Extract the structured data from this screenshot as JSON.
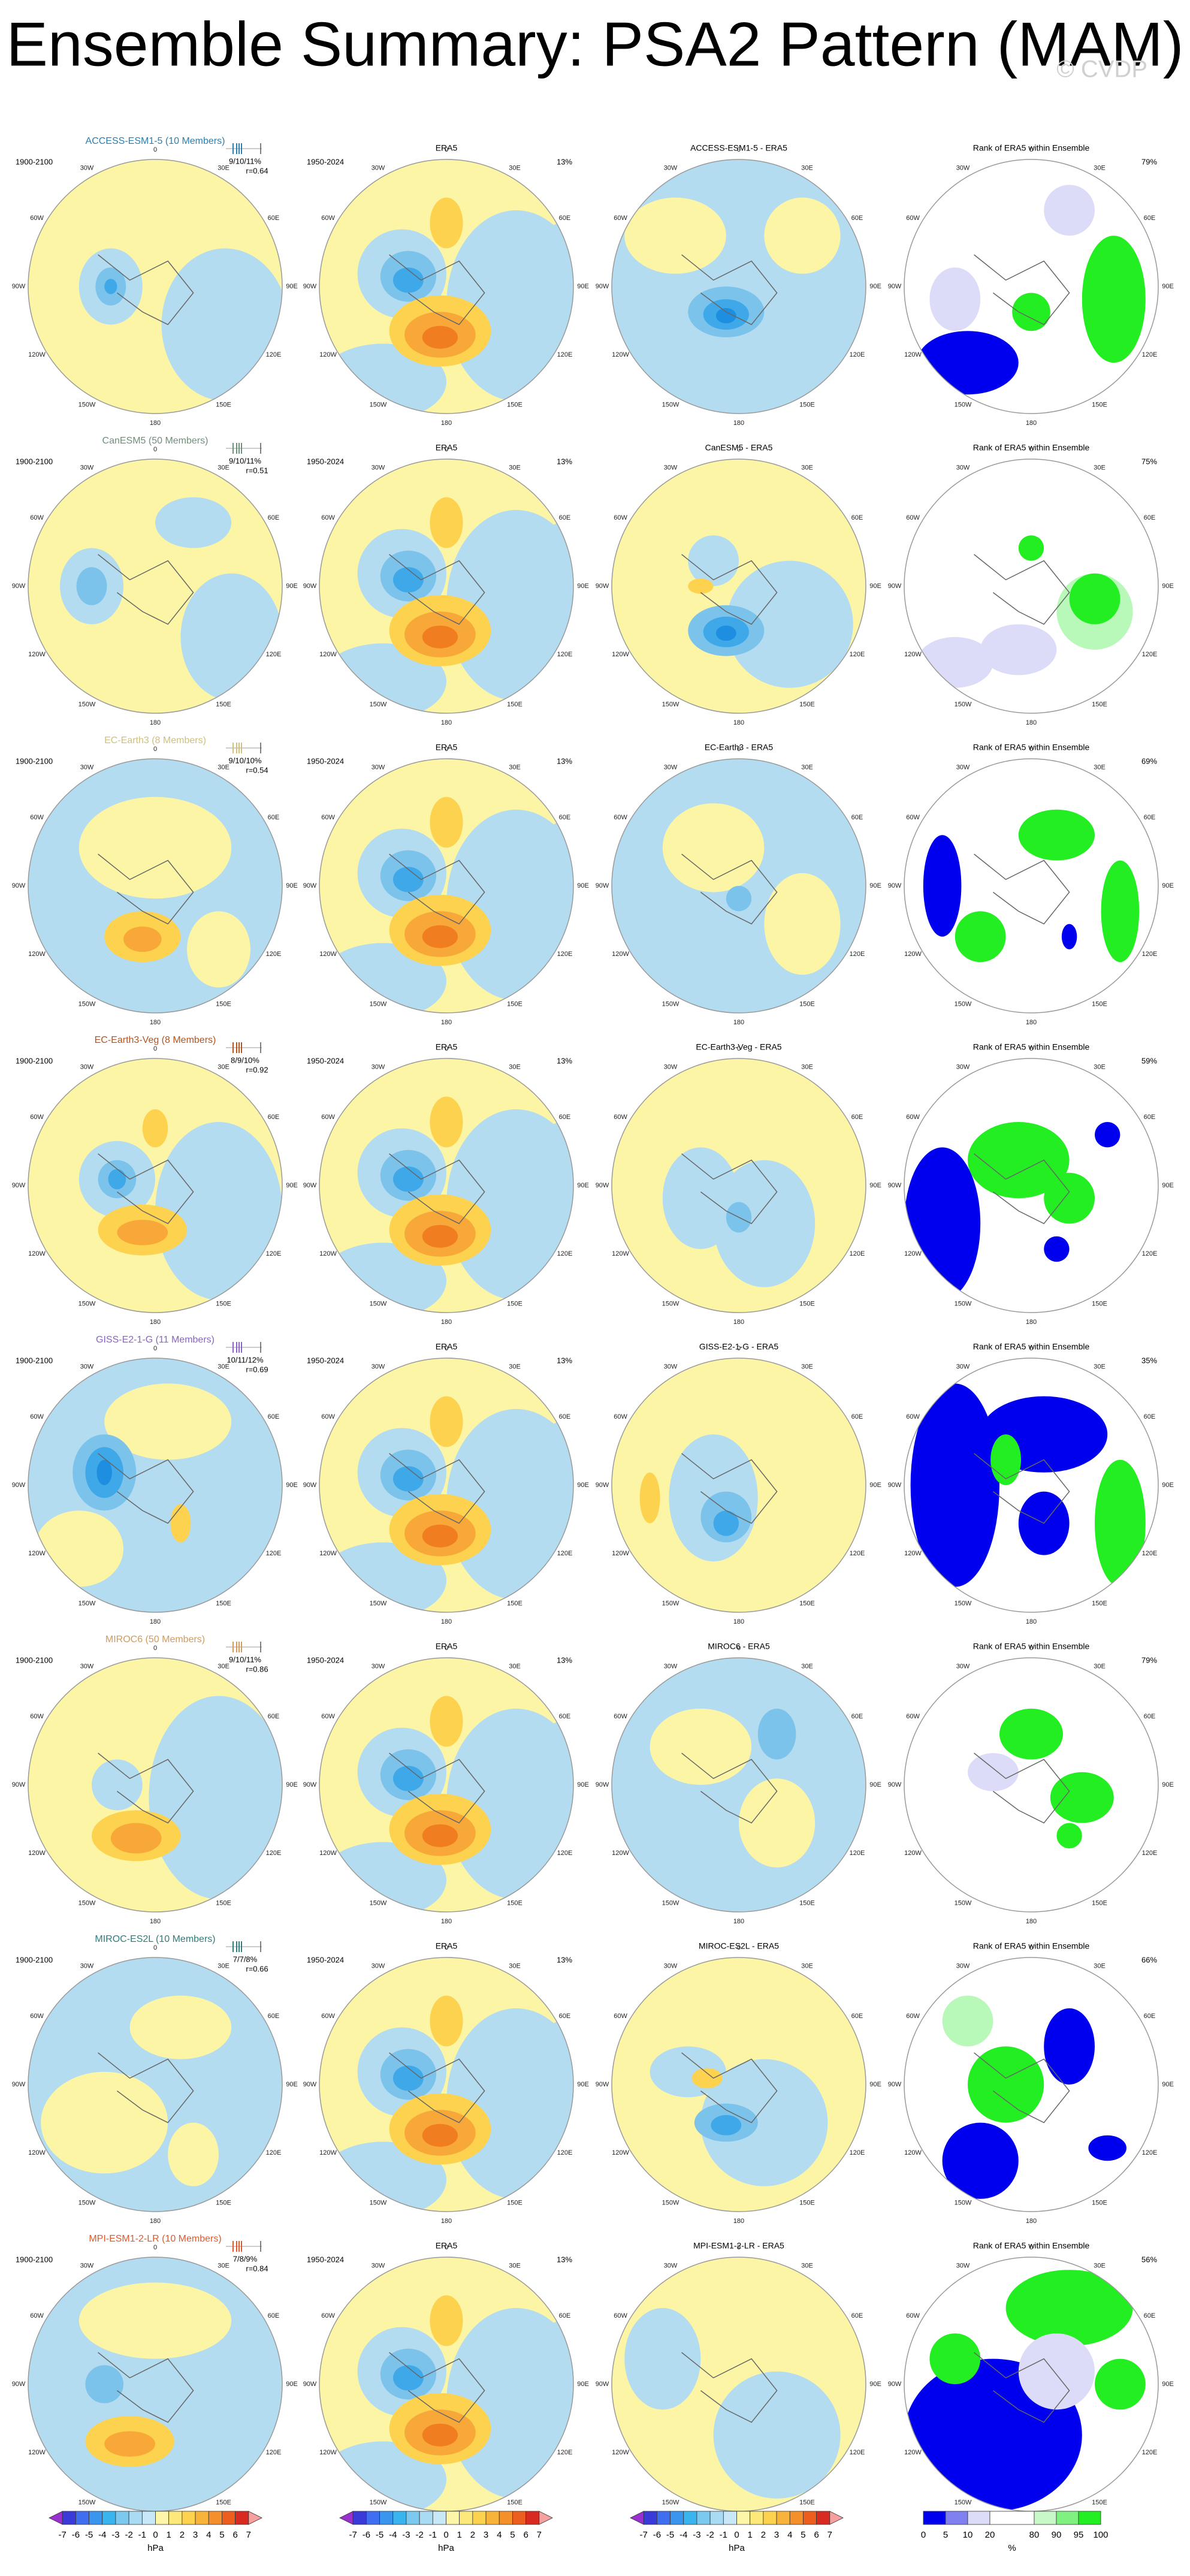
{
  "title": "Ensemble Summary: PSA2 Pattern (MAM)",
  "watermark": "© CVDP",
  "panel_titles": {
    "era5": "ERA5",
    "rank": "Rank of ERA5 within Ensemble"
  },
  "periods": {
    "model": "1900-2100",
    "era5": "1950-2024"
  },
  "lon_labels": [
    "0",
    "30E",
    "60E",
    "90E",
    "120E",
    "150E",
    "180",
    "150W",
    "120W",
    "90W",
    "60W",
    "30W"
  ],
  "rows": [
    {
      "model": "ACCESS-ESM1-5 (10 Members)",
      "color": "#2a7fb0",
      "pct": "9/10/11%",
      "r": "r=0.64",
      "era5_pct": "13%",
      "diff_title": "ACCESS-ESM1-5 - ERA5",
      "rank_pct": "79%"
    },
    {
      "model": "CanESM5 (50 Members)",
      "color": "#6f8f7a",
      "pct": "9/10/11%",
      "r": "r=0.51",
      "era5_pct": "13%",
      "diff_title": "CanESM5 - ERA5",
      "rank_pct": "75%"
    },
    {
      "model": "EC-Earth3 (8 Members)",
      "color": "#cfc07a",
      "pct": "9/10/10%",
      "r": "r=0.54",
      "era5_pct": "13%",
      "diff_title": "EC-Earth3 - ERA5",
      "rank_pct": "69%"
    },
    {
      "model": "EC-Earth3-Veg (8 Members)",
      "color": "#b4531e",
      "pct": "8/9/10%",
      "r": "r=0.92",
      "era5_pct": "13%",
      "diff_title": "EC-Earth3-Veg - ERA5",
      "rank_pct": "59%"
    },
    {
      "model": "GISS-E2-1-G (11 Members)",
      "color": "#8a63c8",
      "pct": "10/11/12%",
      "r": "r=0.69",
      "era5_pct": "13%",
      "diff_title": "GISS-E2-1-G - ERA5",
      "rank_pct": "35%"
    },
    {
      "model": "MIROC6 (50 Members)",
      "color": "#d49a5a",
      "pct": "9/10/11%",
      "r": "r=0.86",
      "era5_pct": "13%",
      "diff_title": "MIROC6 - ERA5",
      "rank_pct": "79%"
    },
    {
      "model": "MIROC-ES2L (10 Members)",
      "color": "#2e7d7a",
      "pct": "7/7/8%",
      "r": "r=0.66",
      "era5_pct": "13%",
      "diff_title": "MIROC-ES2L - ERA5",
      "rank_pct": "66%"
    },
    {
      "model": "MPI-ESM1-2-LR (10 Members)",
      "color": "#e0582a",
      "pct": "7/8/9%",
      "r": "r=0.84",
      "era5_pct": "13%",
      "diff_title": "MPI-ESM1-2-LR - ERA5",
      "rank_pct": "56%"
    }
  ],
  "colorbars": {
    "hpa": {
      "labels": [
        "-7",
        "-6",
        "-5",
        "-4",
        "-3",
        "-2",
        "-1",
        "0",
        "1",
        "2",
        "3",
        "4",
        "5",
        "6",
        "7"
      ],
      "unit": "hPa",
      "colors": [
        "#9b30d0",
        "#3a3ad8",
        "#3f6ff0",
        "#3a95ee",
        "#3ab4ee",
        "#7cc9f0",
        "#a9dcf4",
        "#c8e8f8",
        "#fdf6a8",
        "#fde87a",
        "#fdd24f",
        "#f8b43a",
        "#f3902a",
        "#ec5e1e",
        "#d82a20",
        "#f6a0a0"
      ]
    },
    "rank": {
      "labels": [
        "0",
        "5",
        "10",
        "20",
        "80",
        "90",
        "95",
        "100"
      ],
      "unit": "%",
      "colors": [
        "#0000ee",
        "#8080f0",
        "#dcdcf8",
        "#ffffff",
        "#c8f8c8",
        "#80f080",
        "#22ee22"
      ]
    }
  }
}
